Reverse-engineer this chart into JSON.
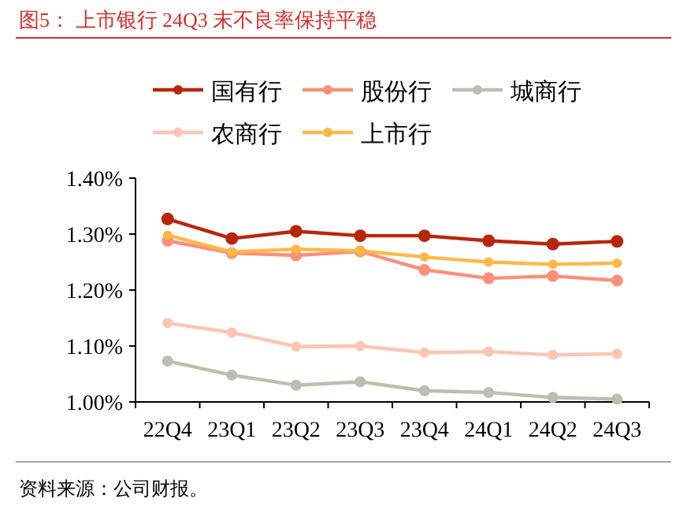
{
  "chart_data": {
    "type": "line",
    "title": "图5：  上市银行 24Q3 末不良率保持平稳",
    "annotations": [
      "资料来源：公司财报。"
    ],
    "categories": [
      "22Q4",
      "23Q1",
      "23Q2",
      "23Q3",
      "23Q4",
      "24Q1",
      "24Q2",
      "24Q3"
    ],
    "series": [
      {
        "name": "国有行",
        "color": "#b8260a",
        "values": [
          1.327,
          1.292,
          1.305,
          1.297,
          1.297,
          1.288,
          1.282,
          1.287
        ]
      },
      {
        "name": "股份行",
        "color": "#ff8f78",
        "values": [
          1.288,
          1.266,
          1.262,
          1.269,
          1.236,
          1.221,
          1.225,
          1.217
        ]
      },
      {
        "name": "城商行",
        "color": "#bdbdb2",
        "values": [
          1.073,
          1.048,
          1.03,
          1.036,
          1.02,
          1.017,
          1.008,
          1.005
        ]
      },
      {
        "name": "农商行",
        "color": "#ffc4b4",
        "values": [
          1.141,
          1.124,
          1.099,
          1.1,
          1.088,
          1.09,
          1.084,
          1.086
        ]
      },
      {
        "name": "上市行",
        "color": "#ffb848",
        "values": [
          1.298,
          1.268,
          1.273,
          1.27,
          1.259,
          1.25,
          1.246,
          1.248
        ]
      }
    ],
    "ylim": [
      1.0,
      1.4
    ],
    "yticks": [
      {
        "value": 1.0,
        "label": "1.00%"
      },
      {
        "value": 1.1,
        "label": "1.10%"
      },
      {
        "value": 1.2,
        "label": "1.20%"
      },
      {
        "value": 1.3,
        "label": "1.30%"
      },
      {
        "value": 1.4,
        "label": "1.40%"
      }
    ],
    "legend": "top",
    "marker": "circle",
    "line_style": "solid",
    "grid": false
  }
}
